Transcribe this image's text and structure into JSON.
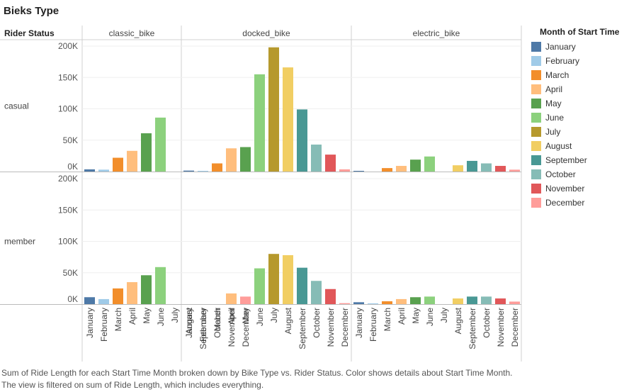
{
  "title": "Bieks Type",
  "caption": "Sum of Ride Length for each Start Time Month broken down by Bike Type vs. Rider Status.  Color shows details about Start Time Month. The view is filtered on sum of Ride Length, which includes everything.",
  "legend": {
    "title": "Month of Start Time"
  },
  "colors": {
    "January": "#4e79a7",
    "February": "#a0cbe8",
    "March": "#f28e2b",
    "April": "#ffbe7d",
    "May": "#59a14f",
    "June": "#8cd17d",
    "July": "#b6992d",
    "August": "#f1ce63",
    "September": "#499894",
    "October": "#86bcb6",
    "November": "#e15759",
    "December": "#ff9d9a"
  },
  "chart_data": {
    "type": "bar",
    "row_header": "Rider Status",
    "columns": [
      "classic_bike",
      "docked_bike",
      "electric_bike"
    ],
    "rows": [
      "casual",
      "member"
    ],
    "categories": [
      "January",
      "February",
      "March",
      "April",
      "May",
      "June",
      "July",
      "August",
      "September",
      "October",
      "November",
      "December"
    ],
    "y_ticks": [
      "0K",
      "50K",
      "100K",
      "150K",
      "200K"
    ],
    "ylim": [
      0,
      200000
    ],
    "panels": [
      {
        "row": "casual",
        "column": "classic_bike",
        "values": [
          3500,
          3000,
          22000,
          33000,
          61000,
          86000,
          null,
          null,
          null,
          null,
          null,
          4500
        ]
      },
      {
        "row": "casual",
        "column": "docked_bike",
        "values": [
          1500,
          1000,
          13000,
          37000,
          39000,
          155000,
          198000,
          166000,
          99000,
          43000,
          27000,
          3500
        ]
      },
      {
        "row": "casual",
        "column": "electric_bike",
        "values": [
          1000,
          null,
          5500,
          9000,
          19000,
          24000,
          null,
          10000,
          17000,
          13000,
          9000,
          3000
        ]
      },
      {
        "row": "member",
        "column": "classic_bike",
        "values": [
          11000,
          8000,
          25000,
          35000,
          46000,
          59000,
          null,
          null,
          null,
          null,
          null,
          12000
        ]
      },
      {
        "row": "member",
        "column": "docked_bike",
        "values": [
          null,
          null,
          null,
          17000,
          null,
          57000,
          80000,
          78000,
          58000,
          37000,
          24000,
          1500
        ]
      },
      {
        "row": "member",
        "column": "electric_bike",
        "values": [
          3000,
          1000,
          4500,
          8000,
          11000,
          12000,
          null,
          9000,
          12000,
          12000,
          9000,
          4000
        ]
      }
    ]
  }
}
